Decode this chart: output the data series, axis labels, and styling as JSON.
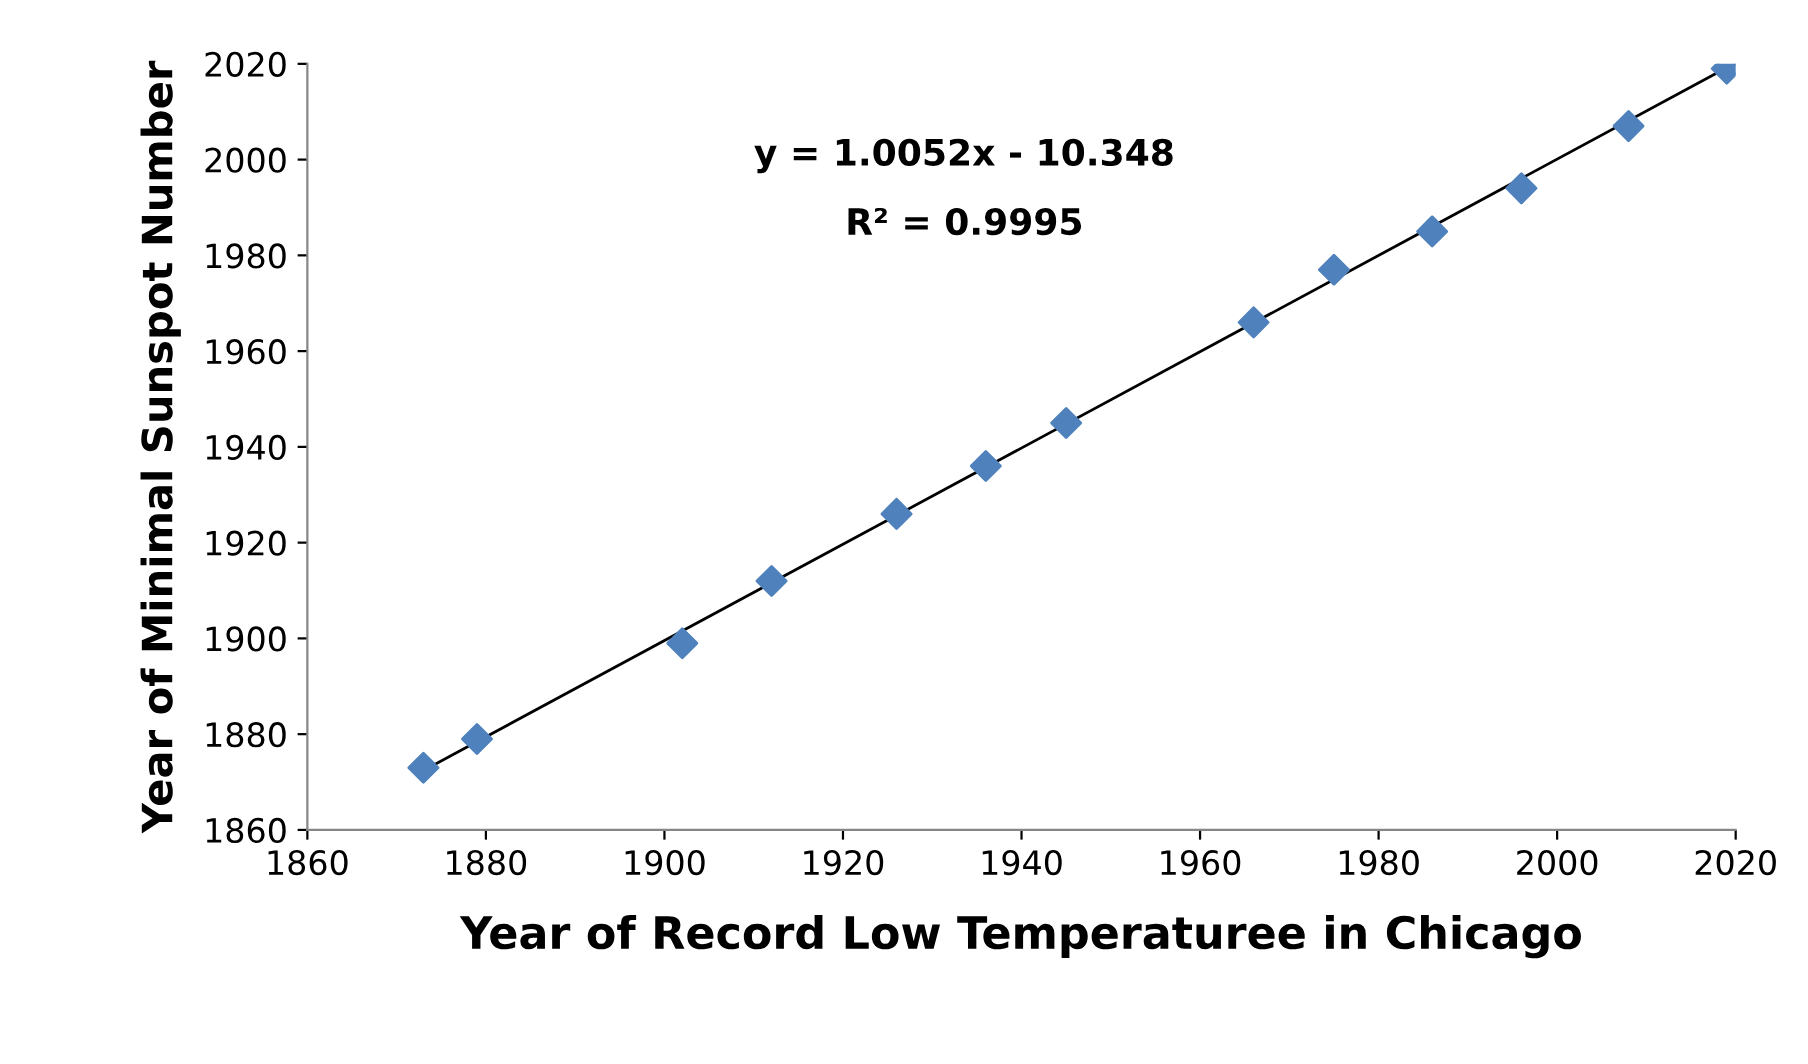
{
  "chart_data": {
    "type": "scatter",
    "xlabel": "Year of Record Low Temperaturee in Chicago",
    "ylabel": "Year of Minimal Sunspot Number",
    "x": [
      1873,
      1879,
      1902,
      1912,
      1926,
      1936,
      1945,
      1966,
      1975,
      1986,
      1996,
      2008,
      2019
    ],
    "series": [
      {
        "color": "#4f81bd",
        "marker": "diamond",
        "values": [
          1873,
          1879,
          1899,
          1912,
          1926,
          1936,
          1945,
          1966,
          1977,
          1985,
          1994,
          2007,
          2019
        ]
      },
      {
        "type": "line",
        "color": "#000000",
        "x": [
          1873,
          2019
        ],
        "values": [
          1872.4,
          2019.2
        ],
        "marker": "none",
        "line_style": "solid"
      }
    ],
    "annotations": [
      "y = 1.0052x - 10.348",
      "R² = 0.9995"
    ],
    "xlim": [
      1860,
      2020
    ],
    "xticks": [
      1860,
      1880,
      1900,
      1920,
      1940,
      1960,
      1980,
      2000,
      2020
    ],
    "ylim": [
      1860,
      2020
    ],
    "yticks": [
      1860,
      1880,
      1900,
      1920,
      1940,
      1960,
      1980,
      2000,
      2020
    ],
    "grid": false,
    "legend": false
  }
}
